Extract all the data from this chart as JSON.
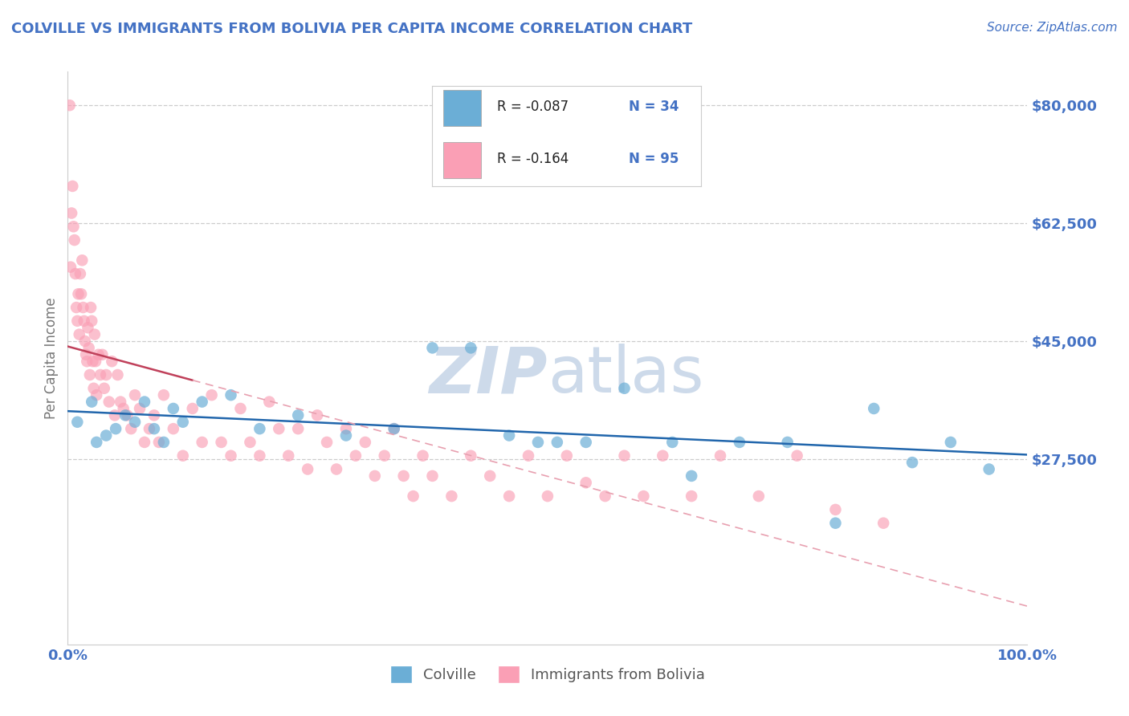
{
  "title": "COLVILLE VS IMMIGRANTS FROM BOLIVIA PER CAPITA INCOME CORRELATION CHART",
  "source_text": "Source: ZipAtlas.com",
  "ylabel": "Per Capita Income",
  "xlim": [
    0.0,
    100.0
  ],
  "ylim": [
    0,
    85000
  ],
  "yticks": [
    27500,
    45000,
    62500,
    80000
  ],
  "ytick_labels": [
    "$27,500",
    "$45,000",
    "$62,500",
    "$80,000"
  ],
  "xtick_labels": [
    "0.0%",
    "100.0%"
  ],
  "legend_R1": "R = -0.087",
  "legend_N1": "N = 34",
  "legend_R2": "R = -0.164",
  "legend_N2": "N = 95",
  "color_blue": "#6baed6",
  "color_pink": "#fa9fb5",
  "color_blue_line": "#2166ac",
  "color_pink_line": "#c0405a",
  "color_pink_dash": "#e8a0b0",
  "color_title": "#4472C4",
  "watermark_color": "#cddaea",
  "label_colville": "Colville",
  "label_bolivia": "Immigrants from Bolivia",
  "blue_scatter_x": [
    1.0,
    2.5,
    3.0,
    4.0,
    5.0,
    6.0,
    7.0,
    8.0,
    9.0,
    10.0,
    11.0,
    12.0,
    14.0,
    17.0,
    20.0,
    24.0,
    29.0,
    34.0,
    38.0,
    42.0,
    46.0,
    49.0,
    51.0,
    54.0,
    58.0,
    63.0,
    65.0,
    70.0,
    75.0,
    80.0,
    84.0,
    88.0,
    92.0,
    96.0
  ],
  "blue_scatter_y": [
    33000,
    36000,
    30000,
    31000,
    32000,
    34000,
    33000,
    36000,
    32000,
    30000,
    35000,
    33000,
    36000,
    37000,
    32000,
    34000,
    31000,
    32000,
    44000,
    44000,
    31000,
    30000,
    30000,
    30000,
    38000,
    30000,
    25000,
    30000,
    30000,
    18000,
    35000,
    27000,
    30000,
    26000
  ],
  "pink_scatter_x": [
    0.2,
    0.3,
    0.4,
    0.5,
    0.6,
    0.7,
    0.8,
    0.9,
    1.0,
    1.1,
    1.2,
    1.3,
    1.4,
    1.5,
    1.6,
    1.7,
    1.8,
    1.9,
    2.0,
    2.1,
    2.2,
    2.3,
    2.4,
    2.5,
    2.6,
    2.7,
    2.8,
    2.9,
    3.0,
    3.2,
    3.4,
    3.6,
    3.8,
    4.0,
    4.3,
    4.6,
    4.9,
    5.2,
    5.5,
    5.8,
    6.2,
    6.6,
    7.0,
    7.5,
    8.0,
    8.5,
    9.0,
    9.5,
    10.0,
    11.0,
    12.0,
    13.0,
    14.0,
    15.0,
    16.0,
    17.0,
    18.0,
    19.0,
    20.0,
    21.0,
    22.0,
    23.0,
    24.0,
    25.0,
    26.0,
    27.0,
    28.0,
    29.0,
    30.0,
    31.0,
    32.0,
    33.0,
    34.0,
    35.0,
    36.0,
    37.0,
    38.0,
    40.0,
    42.0,
    44.0,
    46.0,
    48.0,
    50.0,
    52.0,
    54.0,
    56.0,
    58.0,
    60.0,
    62.0,
    65.0,
    68.0,
    72.0,
    76.0,
    80.0,
    85.0
  ],
  "pink_scatter_y": [
    80000,
    56000,
    64000,
    68000,
    62000,
    60000,
    55000,
    50000,
    48000,
    52000,
    46000,
    55000,
    52000,
    57000,
    50000,
    48000,
    45000,
    43000,
    42000,
    47000,
    44000,
    40000,
    50000,
    48000,
    42000,
    38000,
    46000,
    42000,
    37000,
    43000,
    40000,
    43000,
    38000,
    40000,
    36000,
    42000,
    34000,
    40000,
    36000,
    35000,
    34000,
    32000,
    37000,
    35000,
    30000,
    32000,
    34000,
    30000,
    37000,
    32000,
    28000,
    35000,
    30000,
    37000,
    30000,
    28000,
    35000,
    30000,
    28000,
    36000,
    32000,
    28000,
    32000,
    26000,
    34000,
    30000,
    26000,
    32000,
    28000,
    30000,
    25000,
    28000,
    32000,
    25000,
    22000,
    28000,
    25000,
    22000,
    28000,
    25000,
    22000,
    28000,
    22000,
    28000,
    24000,
    22000,
    28000,
    22000,
    28000,
    22000,
    28000,
    22000,
    28000,
    20000,
    18000
  ]
}
